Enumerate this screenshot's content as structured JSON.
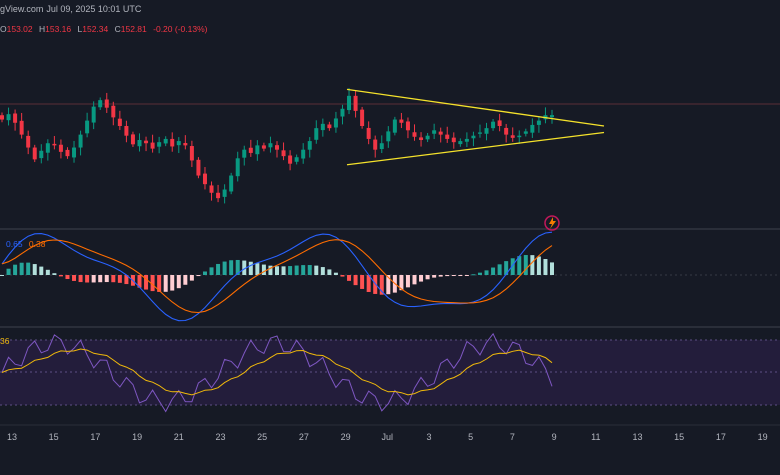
{
  "header": {
    "source": "gView.com",
    "date": "Jul 09, 2025 10:01 UTC"
  },
  "ohlc": {
    "o_label": "O",
    "o": "153.02",
    "h_label": "H",
    "h": "153.16",
    "l_label": "L",
    "l": "152.34",
    "c_label": "C",
    "c": "152.81",
    "change": "-0.20 (-0.13%)"
  },
  "macd_labels": {
    "macd": "0.65",
    "signal": "0.38"
  },
  "rsi_label": "36",
  "colors": {
    "background": "#161a25",
    "up": "#089981",
    "down": "#f23645",
    "triangle": "#f5e22b",
    "macd_line": "#2962ff",
    "signal_line": "#ff6d00",
    "rsi_line": "#7e57c2",
    "rsi_ma": "#f0b90b",
    "rsi_band": "#2a1f45",
    "text": "#b2b5be"
  },
  "chart_data": {
    "type": "candlestick",
    "x_tick_labels": [
      "13",
      "15",
      "17",
      "19",
      "21",
      "23",
      "25",
      "27",
      "29",
      "Jul",
      "3",
      "5",
      "7",
      "9",
      "11",
      "13",
      "15",
      "17",
      "19"
    ],
    "close_series": [
      152.4,
      152.9,
      152.1,
      151.0,
      149.8,
      148.7,
      149.5,
      150.2,
      150.0,
      149.4,
      149.0,
      149.8,
      151.0,
      152.3,
      153.6,
      154.2,
      153.5,
      152.6,
      151.8,
      150.9,
      150.1,
      150.5,
      150.2,
      149.7,
      150.3,
      150.6,
      149.9,
      150.4,
      150.0,
      148.6,
      147.2,
      146.4,
      145.6,
      145.1,
      145.9,
      147.2,
      148.8,
      149.6,
      149.3,
      150.0,
      149.7,
      150.2,
      149.6,
      149.0,
      148.3,
      148.9,
      149.6,
      150.4,
      151.6,
      152.0,
      151.6,
      152.5,
      153.4,
      154.6,
      153.2,
      151.8,
      150.6,
      149.6,
      150.2,
      151.3,
      152.4,
      152.1,
      151.4,
      150.8,
      150.5,
      150.9,
      151.4,
      151.0,
      150.6,
      150.3,
      150.4,
      150.6,
      150.9,
      151.2,
      151.6,
      152.2,
      151.8,
      151.0,
      150.7,
      150.9,
      151.3,
      151.9,
      152.3,
      152.8,
      152.81
    ],
    "triangle": {
      "upper": [
        [
          29.4,
          155.2
        ],
        [
          11.8,
          151.8
        ]
      ],
      "lower": [
        [
          29.4,
          148.2
        ],
        [
          11.8,
          151.2
        ]
      ]
    },
    "indicators": [
      "MACD",
      "RSI"
    ]
  }
}
